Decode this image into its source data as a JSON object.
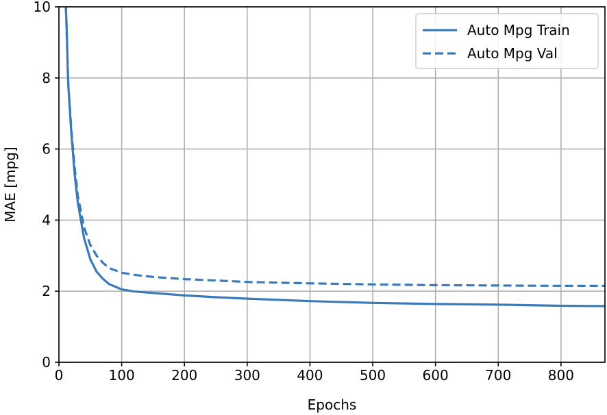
{
  "chart_data": {
    "type": "line",
    "title": "",
    "xlabel": "Epochs",
    "ylabel": "MAE [mpg]",
    "xlim": [
      0,
      870
    ],
    "ylim": [
      0,
      10
    ],
    "xticks": [
      0,
      100,
      200,
      300,
      400,
      500,
      600,
      700,
      800
    ],
    "yticks": [
      0,
      2,
      4,
      6,
      8,
      10
    ],
    "grid": true,
    "legend_position": "top-right",
    "series": [
      {
        "name": "Auto Mpg Train",
        "style": "solid",
        "color": "#3a7ab8",
        "x": [
          11,
          12,
          13,
          14,
          15,
          17,
          20,
          25,
          30,
          40,
          50,
          60,
          70,
          80,
          100,
          120,
          150,
          200,
          250,
          300,
          400,
          500,
          600,
          700,
          800,
          870
        ],
        "y": [
          10,
          9.6,
          9.0,
          8.3,
          7.8,
          7.2,
          6.4,
          5.3,
          4.5,
          3.5,
          2.9,
          2.55,
          2.35,
          2.2,
          2.05,
          1.99,
          1.95,
          1.88,
          1.83,
          1.79,
          1.72,
          1.67,
          1.64,
          1.62,
          1.59,
          1.58
        ]
      },
      {
        "name": "Auto Mpg Val",
        "style": "dashed",
        "color": "#3a7ab8",
        "x": [
          11,
          12,
          13,
          14,
          15,
          17,
          20,
          25,
          30,
          40,
          50,
          60,
          70,
          80,
          100,
          120,
          150,
          200,
          250,
          300,
          400,
          500,
          600,
          700,
          800,
          870
        ],
        "y": [
          10,
          9.5,
          8.9,
          8.3,
          7.8,
          7.3,
          6.5,
          5.5,
          4.7,
          3.8,
          3.3,
          3.0,
          2.8,
          2.65,
          2.52,
          2.46,
          2.4,
          2.34,
          2.3,
          2.26,
          2.22,
          2.19,
          2.17,
          2.16,
          2.15,
          2.15
        ]
      }
    ]
  }
}
